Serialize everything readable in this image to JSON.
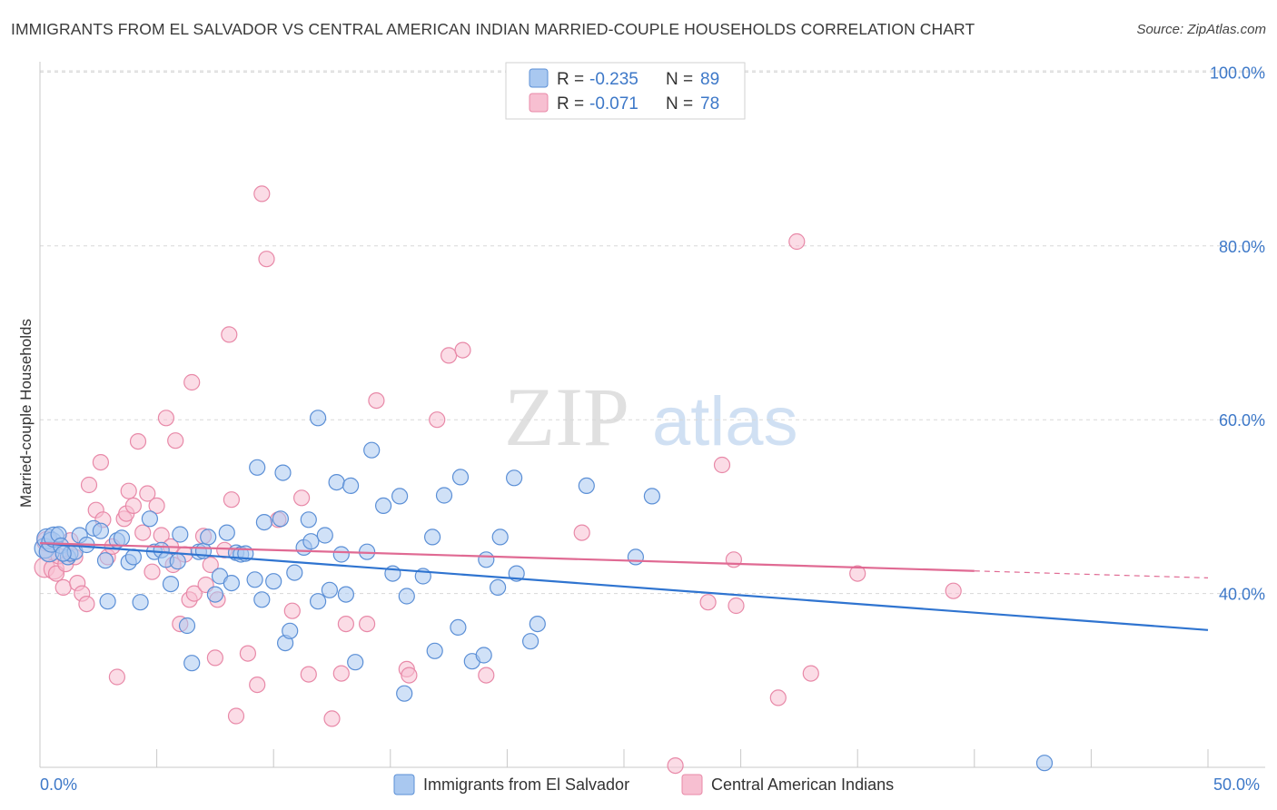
{
  "title": "IMMIGRANTS FROM EL SALVADOR VS CENTRAL AMERICAN INDIAN MARRIED-COUPLE HOUSEHOLDS CORRELATION CHART",
  "source": "Source: ZipAtlas.com",
  "watermark": {
    "zip": "ZIP",
    "atlas": "atlas"
  },
  "colors": {
    "blue_fill": "#a9c8f0",
    "blue_stroke": "#5b8fd6",
    "blue_line": "#2f74d0",
    "pink_fill": "#f7bfd1",
    "pink_stroke": "#e889a8",
    "pink_line": "#e06a93",
    "value_text": "#3d78c8",
    "grid": "#d8d8d8"
  },
  "legend": {
    "rows": [
      {
        "r_label": "R =",
        "r_value": "-0.235",
        "n_label": "N =",
        "n_value": "89",
        "series": "blue"
      },
      {
        "r_label": "R =",
        "r_value": "-0.071",
        "n_label": "N =",
        "n_value": "78",
        "series": "pink"
      }
    ]
  },
  "chart_data": {
    "type": "scatter",
    "title": "IMMIGRANTS FROM EL SALVADOR VS CENTRAL AMERICAN INDIAN MARRIED-COUPLE HOUSEHOLDS CORRELATION CHART",
    "xlabel": "",
    "ylabel": "Married-couple Households",
    "xlim": [
      0,
      50
    ],
    "ylim": [
      20,
      102
    ],
    "x_tick_labels": [
      "0.0%",
      "50.0%"
    ],
    "y_ticks": [
      {
        "value": 40,
        "label": "40.0%"
      },
      {
        "value": 60,
        "label": "60.0%"
      },
      {
        "value": 80,
        "label": "80.0%"
      },
      {
        "value": 100,
        "label": "100.0%"
      }
    ],
    "grid": true,
    "legend_position": "bottom-center",
    "series": [
      {
        "name": "Immigrants from El Salvador",
        "color": "blue",
        "trend": {
          "x": [
            0,
            50
          ],
          "y": [
            45.8,
            35.8
          ]
        },
        "points": [
          [
            0.2,
            45.2
          ],
          [
            0.3,
            46.3
          ],
          [
            0.4,
            44.8
          ],
          [
            0.5,
            45.9
          ],
          [
            0.6,
            46.5
          ],
          [
            0.8,
            46.8
          ],
          [
            0.9,
            45.5
          ],
          [
            1.2,
            44.2
          ],
          [
            1.3,
            44.6
          ],
          [
            1.5,
            44.8
          ],
          [
            1.7,
            46.7
          ],
          [
            2.0,
            45.6
          ],
          [
            2.3,
            47.5
          ],
          [
            2.6,
            47.2
          ],
          [
            2.8,
            43.8
          ],
          [
            2.9,
            39.1
          ],
          [
            3.3,
            46.1
          ],
          [
            3.5,
            46.4
          ],
          [
            3.8,
            43.6
          ],
          [
            4.0,
            44.2
          ],
          [
            4.3,
            39.0
          ],
          [
            4.7,
            48.6
          ],
          [
            4.9,
            44.8
          ],
          [
            5.2,
            45.0
          ],
          [
            5.4,
            43.9
          ],
          [
            5.6,
            41.1
          ],
          [
            5.9,
            43.7
          ],
          [
            6.0,
            46.8
          ],
          [
            6.3,
            36.3
          ],
          [
            6.5,
            32.0
          ],
          [
            6.8,
            44.8
          ],
          [
            7.0,
            44.9
          ],
          [
            7.2,
            46.5
          ],
          [
            7.5,
            39.9
          ],
          [
            7.7,
            42.0
          ],
          [
            8.0,
            47.0
          ],
          [
            8.2,
            41.2
          ],
          [
            8.4,
            44.7
          ],
          [
            8.6,
            44.5
          ],
          [
            8.8,
            44.6
          ],
          [
            9.2,
            41.6
          ],
          [
            9.3,
            54.5
          ],
          [
            9.5,
            39.3
          ],
          [
            9.6,
            48.2
          ],
          [
            10.0,
            41.4
          ],
          [
            10.3,
            48.6
          ],
          [
            10.4,
            53.9
          ],
          [
            10.5,
            34.3
          ],
          [
            10.7,
            35.7
          ],
          [
            10.9,
            42.4
          ],
          [
            11.3,
            45.3
          ],
          [
            11.5,
            48.5
          ],
          [
            11.6,
            46.0
          ],
          [
            11.9,
            60.2
          ],
          [
            11.9,
            39.1
          ],
          [
            12.2,
            46.7
          ],
          [
            12.4,
            40.4
          ],
          [
            12.7,
            52.8
          ],
          [
            12.9,
            44.5
          ],
          [
            13.1,
            39.9
          ],
          [
            13.3,
            52.4
          ],
          [
            13.5,
            32.1
          ],
          [
            14.0,
            44.8
          ],
          [
            14.2,
            56.5
          ],
          [
            14.7,
            50.1
          ],
          [
            15.1,
            42.3
          ],
          [
            15.4,
            51.2
          ],
          [
            15.6,
            28.5
          ],
          [
            15.7,
            39.7
          ],
          [
            16.4,
            42.0
          ],
          [
            16.8,
            46.5
          ],
          [
            16.9,
            33.4
          ],
          [
            17.3,
            51.3
          ],
          [
            17.9,
            36.1
          ],
          [
            18.0,
            53.4
          ],
          [
            18.5,
            32.2
          ],
          [
            19.0,
            32.9
          ],
          [
            19.1,
            43.9
          ],
          [
            19.6,
            40.7
          ],
          [
            19.7,
            46.5
          ],
          [
            20.3,
            53.3
          ],
          [
            20.4,
            42.3
          ],
          [
            21.0,
            34.5
          ],
          [
            21.3,
            36.5
          ],
          [
            23.4,
            52.4
          ],
          [
            25.5,
            44.2
          ],
          [
            26.2,
            51.2
          ],
          [
            43.0,
            20.5
          ],
          [
            1.0,
            44.6
          ]
        ]
      },
      {
        "name": "Central American Indians",
        "color": "pink",
        "trend": {
          "x": [
            0,
            40
          ],
          "y": [
            45.8,
            42.6
          ]
        },
        "trend_dashed": {
          "x": [
            40,
            50
          ],
          "y": [
            42.6,
            41.8
          ]
        },
        "points": [
          [
            0.2,
            43.0
          ],
          [
            0.3,
            46.0
          ],
          [
            0.4,
            44.8
          ],
          [
            0.6,
            42.8
          ],
          [
            0.7,
            42.3
          ],
          [
            0.8,
            44.3
          ],
          [
            1.0,
            40.7
          ],
          [
            1.1,
            43.4
          ],
          [
            1.3,
            46.1
          ],
          [
            1.6,
            41.2
          ],
          [
            1.8,
            40.0
          ],
          [
            2.0,
            38.8
          ],
          [
            2.1,
            52.5
          ],
          [
            2.4,
            49.6
          ],
          [
            2.6,
            55.1
          ],
          [
            2.7,
            48.5
          ],
          [
            2.9,
            44.2
          ],
          [
            3.1,
            45.4
          ],
          [
            3.3,
            30.4
          ],
          [
            3.6,
            48.6
          ],
          [
            3.7,
            49.2
          ],
          [
            3.8,
            51.8
          ],
          [
            4.0,
            50.1
          ],
          [
            4.2,
            57.5
          ],
          [
            4.4,
            47.0
          ],
          [
            4.6,
            51.5
          ],
          [
            4.8,
            42.5
          ],
          [
            5.0,
            50.1
          ],
          [
            5.2,
            46.7
          ],
          [
            5.4,
            60.2
          ],
          [
            5.6,
            45.4
          ],
          [
            5.7,
            43.3
          ],
          [
            5.8,
            57.6
          ],
          [
            6.0,
            36.5
          ],
          [
            6.2,
            44.5
          ],
          [
            6.4,
            39.3
          ],
          [
            6.5,
            64.3
          ],
          [
            6.6,
            40.0
          ],
          [
            7.0,
            46.6
          ],
          [
            7.1,
            41.0
          ],
          [
            7.3,
            43.3
          ],
          [
            7.5,
            32.6
          ],
          [
            7.6,
            39.3
          ],
          [
            7.9,
            45.0
          ],
          [
            8.1,
            69.8
          ],
          [
            8.2,
            50.8
          ],
          [
            8.4,
            25.9
          ],
          [
            8.9,
            33.1
          ],
          [
            9.3,
            29.5
          ],
          [
            9.5,
            86.0
          ],
          [
            9.7,
            78.5
          ],
          [
            10.2,
            48.5
          ],
          [
            10.8,
            38.0
          ],
          [
            11.2,
            51.0
          ],
          [
            11.5,
            30.7
          ],
          [
            12.5,
            25.6
          ],
          [
            12.9,
            30.8
          ],
          [
            13.1,
            36.5
          ],
          [
            14.0,
            36.5
          ],
          [
            14.4,
            62.2
          ],
          [
            15.7,
            31.3
          ],
          [
            15.8,
            30.6
          ],
          [
            17.0,
            60.0
          ],
          [
            17.5,
            67.4
          ],
          [
            18.1,
            68.0
          ],
          [
            19.1,
            30.6
          ],
          [
            23.2,
            47.0
          ],
          [
            27.2,
            20.2
          ],
          [
            28.6,
            39.0
          ],
          [
            29.2,
            54.8
          ],
          [
            29.7,
            43.9
          ],
          [
            29.8,
            38.6
          ],
          [
            31.6,
            28.0
          ],
          [
            32.4,
            80.5
          ],
          [
            33.0,
            30.8
          ],
          [
            35.0,
            42.3
          ],
          [
            39.1,
            40.3
          ],
          [
            1.5,
            44.2
          ]
        ]
      }
    ]
  },
  "bottom_legend": [
    {
      "label": "Immigrants from El Salvador",
      "series": "blue"
    },
    {
      "label": "Central American Indians",
      "series": "pink"
    }
  ]
}
